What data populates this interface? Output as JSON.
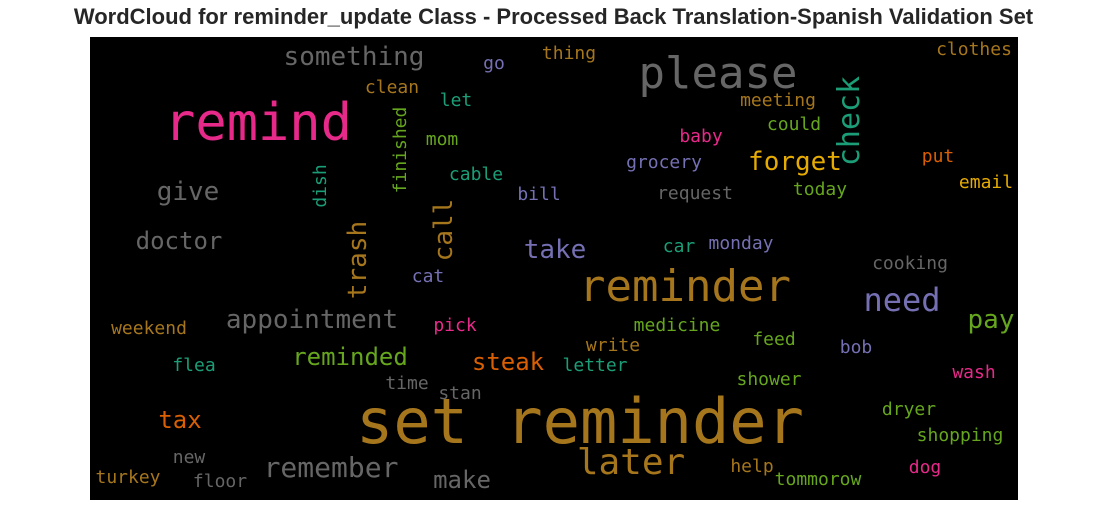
{
  "chart_data": {
    "type": "wordcloud",
    "title": "WordCloud for reminder_update Class - Processed Back Translation-Spanish Validation Set",
    "background": "#000000",
    "words": [
      {
        "text": "set reminder",
        "color": "#a6761d",
        "size": 62
      },
      {
        "text": "remind",
        "color": "#e7298a",
        "size": 52
      },
      {
        "text": "please",
        "color": "#666666",
        "size": 44
      },
      {
        "text": "reminder",
        "color": "#a6761d",
        "size": 44
      },
      {
        "text": "later",
        "color": "#a6761d",
        "size": 36
      },
      {
        "text": "need",
        "color": "#7570b3",
        "size": 32
      },
      {
        "text": "check",
        "color": "#1b9e77",
        "size": 30,
        "vertical": true
      },
      {
        "text": "remember",
        "color": "#666666",
        "size": 28
      },
      {
        "text": "something",
        "color": "#666666",
        "size": 26
      },
      {
        "text": "give",
        "color": "#666666",
        "size": 26
      },
      {
        "text": "forget",
        "color": "#e6ab02",
        "size": 26
      },
      {
        "text": "appointment",
        "color": "#666666",
        "size": 26
      },
      {
        "text": "doctor",
        "color": "#666666",
        "size": 24
      },
      {
        "text": "trash",
        "color": "#a6761d",
        "size": 26,
        "vertical": true
      },
      {
        "text": "call",
        "color": "#a6761d",
        "size": 26,
        "vertical": true
      },
      {
        "text": "take",
        "color": "#7570b3",
        "size": 26
      },
      {
        "text": "pay",
        "color": "#66a61e",
        "size": 26
      },
      {
        "text": "reminded",
        "color": "#66a61e",
        "size": 24
      },
      {
        "text": "steak",
        "color": "#d95f02",
        "size": 24
      },
      {
        "text": "tax",
        "color": "#d95f02",
        "size": 24
      },
      {
        "text": "make",
        "color": "#666666",
        "size": 24
      },
      {
        "text": "clothes",
        "color": "#a6761d",
        "size": 18
      },
      {
        "text": "thing",
        "color": "#a6761d",
        "size": 18
      },
      {
        "text": "go",
        "color": "#7570b3",
        "size": 18
      },
      {
        "text": "clean",
        "color": "#a6761d",
        "size": 18
      },
      {
        "text": "let",
        "color": "#1b9e77",
        "size": 18
      },
      {
        "text": "meeting",
        "color": "#a6761d",
        "size": 18
      },
      {
        "text": "could",
        "color": "#66a61e",
        "size": 18
      },
      {
        "text": "baby",
        "color": "#e7298a",
        "size": 18
      },
      {
        "text": "mom",
        "color": "#66a61e",
        "size": 18
      },
      {
        "text": "finished",
        "color": "#66a61e",
        "size": 18,
        "vertical": true
      },
      {
        "text": "dish",
        "color": "#1b9e77",
        "size": 18,
        "vertical": true
      },
      {
        "text": "grocery",
        "color": "#7570b3",
        "size": 18
      },
      {
        "text": "put",
        "color": "#d95f02",
        "size": 18
      },
      {
        "text": "cable",
        "color": "#1b9e77",
        "size": 18
      },
      {
        "text": "email",
        "color": "#e6ab02",
        "size": 18
      },
      {
        "text": "today",
        "color": "#66a61e",
        "size": 18
      },
      {
        "text": "bill",
        "color": "#7570b3",
        "size": 18
      },
      {
        "text": "request",
        "color": "#666666",
        "size": 18
      },
      {
        "text": "car",
        "color": "#1b9e77",
        "size": 18
      },
      {
        "text": "monday",
        "color": "#7570b3",
        "size": 18
      },
      {
        "text": "cat",
        "color": "#7570b3",
        "size": 18
      },
      {
        "text": "cooking",
        "color": "#666666",
        "size": 18
      },
      {
        "text": "weekend",
        "color": "#a6761d",
        "size": 18
      },
      {
        "text": "pick",
        "color": "#e7298a",
        "size": 18
      },
      {
        "text": "medicine",
        "color": "#66a61e",
        "size": 18
      },
      {
        "text": "write",
        "color": "#a6761d",
        "size": 18
      },
      {
        "text": "feed",
        "color": "#66a61e",
        "size": 18
      },
      {
        "text": "flea",
        "color": "#1b9e77",
        "size": 18
      },
      {
        "text": "bob",
        "color": "#7570b3",
        "size": 18
      },
      {
        "text": "letter",
        "color": "#1b9e77",
        "size": 18
      },
      {
        "text": "wash",
        "color": "#e7298a",
        "size": 18
      },
      {
        "text": "time",
        "color": "#666666",
        "size": 18
      },
      {
        "text": "shower",
        "color": "#66a61e",
        "size": 18
      },
      {
        "text": "stan",
        "color": "#666666",
        "size": 18
      },
      {
        "text": "dryer",
        "color": "#66a61e",
        "size": 18
      },
      {
        "text": "shopping",
        "color": "#66a61e",
        "size": 18
      },
      {
        "text": "new",
        "color": "#666666",
        "size": 18
      },
      {
        "text": "help",
        "color": "#a6761d",
        "size": 18
      },
      {
        "text": "dog",
        "color": "#e7298a",
        "size": 18
      },
      {
        "text": "turkey",
        "color": "#a6761d",
        "size": 18
      },
      {
        "text": "floor",
        "color": "#666666",
        "size": 18
      },
      {
        "text": "tommorow",
        "color": "#66a61e",
        "size": 18
      }
    ]
  }
}
